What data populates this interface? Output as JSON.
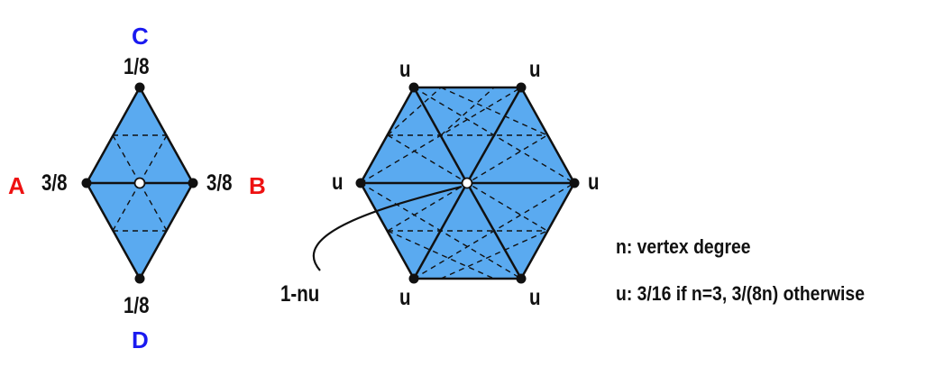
{
  "colors": {
    "fill": "#5aaaf0",
    "stroke": "#111111",
    "red_label": "#ee1111",
    "blue_label": "#1a1af0",
    "center_vertex": "#ffffff"
  },
  "rhombus": {
    "vertex_labels": {
      "top": "C",
      "left": "A",
      "right": "B",
      "bottom": "D"
    },
    "weights": {
      "top": "1/8",
      "left": "3/8",
      "right": "3/8",
      "bottom": "1/8"
    }
  },
  "hexagon": {
    "neighbor_weight": "u",
    "center_weight": "1-nu"
  },
  "legend": {
    "line1": "n: vertex degree",
    "line2": "u: 3/16 if n=3, 3/(8n) otherwise"
  }
}
